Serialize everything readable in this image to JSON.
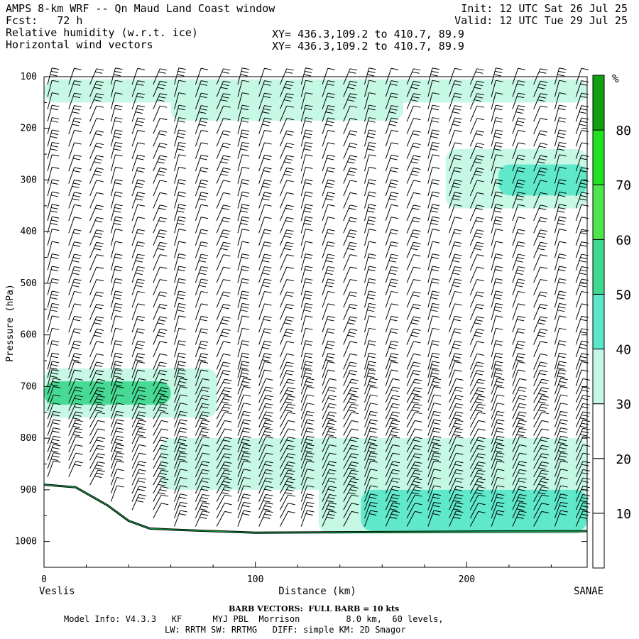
{
  "header": {
    "title_line": "AMPS 8-km WRF -- Qn Maud Land Coast window",
    "fcst_line": "Fcst:   72 h",
    "init_line": "Init: 12 UTC Sat 26 Jul 25",
    "valid_line": "Valid: 12 UTC Tue 29 Jul 25",
    "field1": "Relative humidity (w.r.t. ice)",
    "field2": "Horizontal wind vectors",
    "xy1": "XY= 436.3,109.2 to 410.7, 89.9",
    "xy2": "XY= 436.3,109.2 to 410.7, 89.9"
  },
  "footer": {
    "barb": "BARB VECTORS:  FULL BARB = 10 kts",
    "model1": "Model Info: V4.3.3   KF      MYJ PBL  Morrison         8.0 km,  60 levels,",
    "model2": "LW: RRTM SW: RRTMG   DIFF: simple KM: 2D Smagor"
  },
  "chart_data": {
    "type": "heatmap",
    "xlabel": "Distance (km)",
    "ylabel": "Pressure (hPa)",
    "x_left_label": "Veslis",
    "x_right_label": "SANAE",
    "xlim": [
      0,
      257
    ],
    "ylim": [
      1050,
      100
    ],
    "x_ticks": [
      0,
      100,
      200
    ],
    "y_ticks": [
      100,
      200,
      300,
      400,
      500,
      600,
      700,
      800,
      900,
      1000
    ],
    "colorbar": {
      "unit": "%",
      "levels": [
        10,
        20,
        30,
        40,
        50,
        60,
        70,
        80
      ],
      "colors": [
        "#ffffff",
        "#ffffff",
        "#ffffff",
        "#c4f7e4",
        "#5ae8c8",
        "#40d890",
        "#4ee64e",
        "#22e022",
        "#10a010"
      ]
    },
    "humidity_regions": [
      {
        "level": 30,
        "x": [
          0,
          257
        ],
        "p": [
          105,
          150
        ]
      },
      {
        "level": 30,
        "x": [
          60,
          170
        ],
        "p": [
          115,
          185
        ]
      },
      {
        "level": 30,
        "x": [
          190,
          257
        ],
        "p": [
          240,
          355
        ]
      },
      {
        "level": 40,
        "x": [
          215,
          257
        ],
        "p": [
          270,
          330
        ]
      },
      {
        "level": 30,
        "x": [
          0,
          82
        ],
        "p": [
          665,
          760
        ]
      },
      {
        "level": 50,
        "x": [
          0,
          60
        ],
        "p": [
          690,
          735
        ]
      },
      {
        "level": 30,
        "x": [
          55,
          257
        ],
        "p": [
          800,
          900
        ]
      },
      {
        "level": 30,
        "x": [
          130,
          257
        ],
        "p": [
          860,
          985
        ]
      },
      {
        "level": 40,
        "x": [
          150,
          257
        ],
        "p": [
          900,
          980
        ]
      }
    ],
    "terrain_surface": [
      [
        0,
        890
      ],
      [
        15,
        895
      ],
      [
        30,
        930
      ],
      [
        40,
        960
      ],
      [
        50,
        975
      ],
      [
        60,
        977
      ],
      [
        80,
        980
      ],
      [
        100,
        983
      ],
      [
        150,
        982
      ],
      [
        200,
        981
      ],
      [
        257,
        980
      ]
    ],
    "wind_barb_columns_km": [
      0,
      10,
      20,
      30,
      40,
      50,
      60,
      70,
      80,
      90,
      100,
      110,
      120,
      130,
      140,
      150,
      160,
      170,
      180,
      190,
      200,
      210,
      220,
      230,
      240,
      250
    ]
  },
  "colors": {
    "frame": "#000000",
    "terrain_line": "#10a040"
  }
}
